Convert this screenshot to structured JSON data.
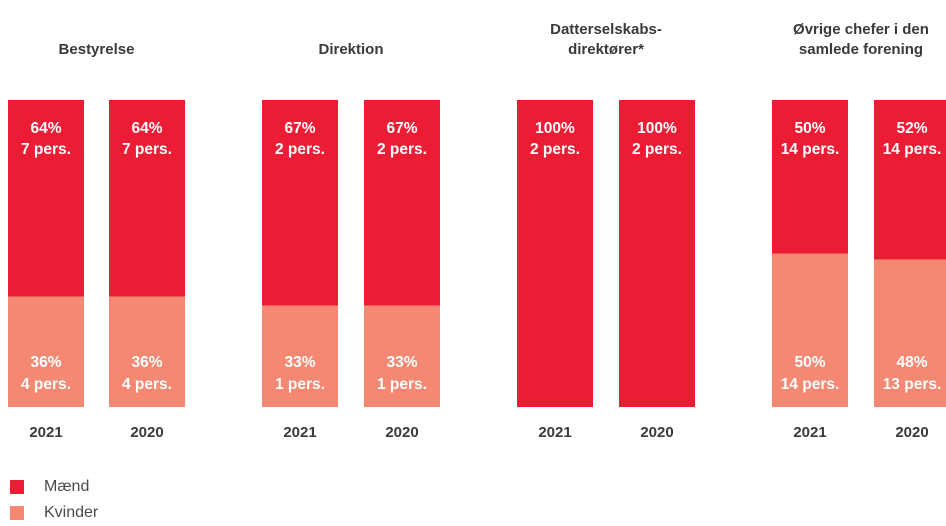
{
  "colors": {
    "maend": "#EC1C34",
    "kvinder": "#F58872"
  },
  "chart_data": {
    "type": "bar",
    "stacked": true,
    "ylim": [
      0,
      100
    ],
    "legend_position": "bottom-left",
    "legend": [
      {
        "key": "maend",
        "label": "Mænd"
      },
      {
        "key": "kvinder",
        "label": "Kvinder"
      }
    ],
    "groups": [
      {
        "title": [
          "Bestyrelse"
        ],
        "bars": [
          {
            "year": "2021",
            "maend_pct": 64,
            "maend_line1": "64%",
            "maend_line2": "7 pers.",
            "kvinder_pct": 36,
            "kvinder_line1": "36%",
            "kvinder_line2": "4 pers."
          },
          {
            "year": "2020",
            "maend_pct": 64,
            "maend_line1": "64%",
            "maend_line2": "7 pers.",
            "kvinder_pct": 36,
            "kvinder_line1": "36%",
            "kvinder_line2": "4 pers."
          }
        ]
      },
      {
        "title": [
          "Direktion"
        ],
        "bars": [
          {
            "year": "2021",
            "maend_pct": 67,
            "maend_line1": "67%",
            "maend_line2": "2 pers.",
            "kvinder_pct": 33,
            "kvinder_line1": "33%",
            "kvinder_line2": "1 pers."
          },
          {
            "year": "2020",
            "maend_pct": 67,
            "maend_line1": "67%",
            "maend_line2": "2 pers.",
            "kvinder_pct": 33,
            "kvinder_line1": "33%",
            "kvinder_line2": "1 pers."
          }
        ]
      },
      {
        "title": [
          "Datterselskabs-",
          "direktører*"
        ],
        "bars": [
          {
            "year": "2021",
            "maend_pct": 100,
            "maend_line1": "100%",
            "maend_line2": "2 pers.",
            "kvinder_pct": 0,
            "kvinder_line1": "",
            "kvinder_line2": ""
          },
          {
            "year": "2020",
            "maend_pct": 100,
            "maend_line1": "100%",
            "maend_line2": "2 pers.",
            "kvinder_pct": 0,
            "kvinder_line1": "",
            "kvinder_line2": ""
          }
        ]
      },
      {
        "title": [
          "Øvrige chefer i den",
          "samlede forening"
        ],
        "bars": [
          {
            "year": "2021",
            "maend_pct": 50,
            "maend_line1": "50%",
            "maend_line2": "14 pers.",
            "kvinder_pct": 50,
            "kvinder_line1": "50%",
            "kvinder_line2": "14 pers."
          },
          {
            "year": "2020",
            "maend_pct": 52,
            "maend_line1": "52%",
            "maend_line2": "14 pers.",
            "kvinder_pct": 48,
            "kvinder_line1": "48%",
            "kvinder_line2": "13 pers."
          }
        ]
      }
    ]
  }
}
